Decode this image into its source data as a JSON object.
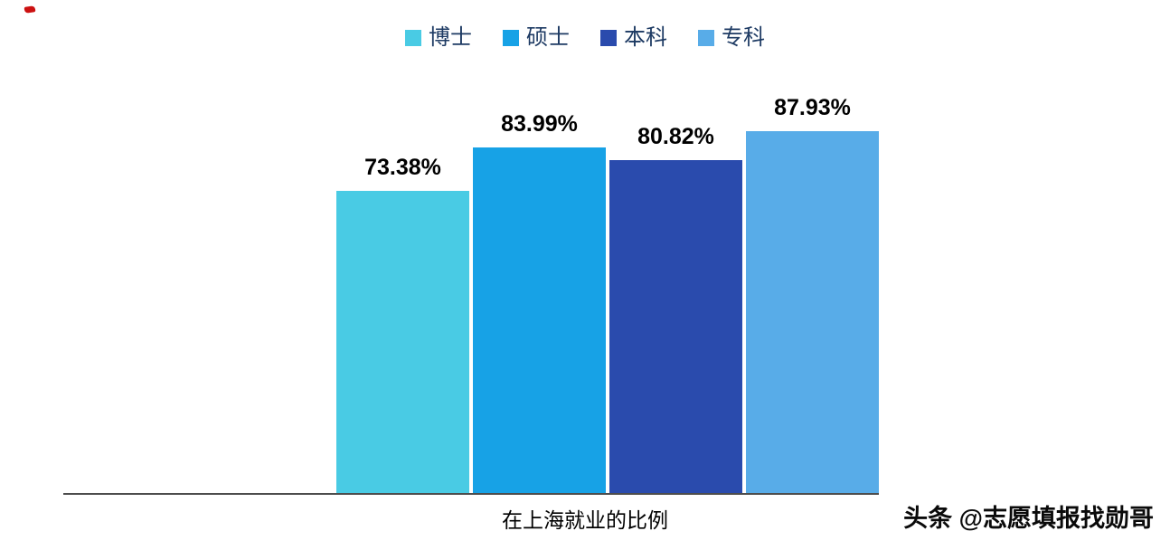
{
  "chart_data": {
    "type": "bar",
    "title": "",
    "xlabel": "在上海就业的比例",
    "ylabel": "",
    "ylim": [
      0,
      100
    ],
    "grid": false,
    "legend_position": "top",
    "categories": [
      "博士",
      "硕士",
      "本科",
      "专科"
    ],
    "values": [
      73.38,
      83.99,
      80.82,
      87.93
    ],
    "value_labels": [
      "73.38%",
      "83.99%",
      "80.82%",
      "87.93%"
    ],
    "colors": [
      "#49cbe4",
      "#17a2e6",
      "#2a4bad",
      "#58ace8"
    ]
  },
  "watermark": "头条 @志愿填报找勋哥",
  "decorations": {
    "corner_mark_color": "#cc1111"
  }
}
